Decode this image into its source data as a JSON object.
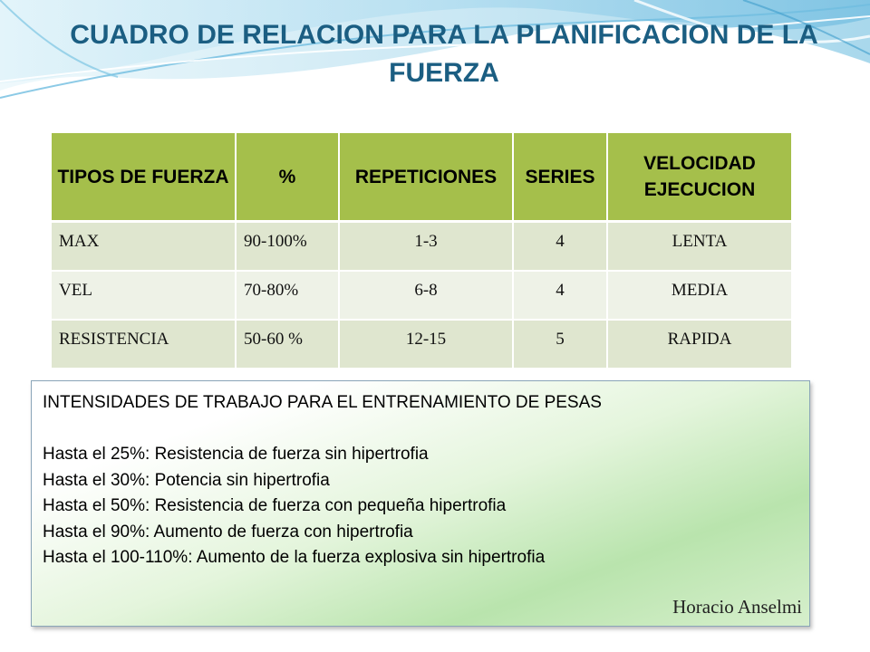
{
  "slide": {
    "title": "CUADRO DE RELACION PARA LA PLANIFICACION DE LA FUERZA"
  },
  "table": {
    "headers": [
      "TIPOS DE FUERZA",
      "%",
      "REPETICIONES",
      "SERIES",
      "VELOCIDAD EJECUCION"
    ],
    "rows": [
      [
        "MAX",
        "90-100%",
        "1-3",
        "4",
        "LENTA"
      ],
      [
        "VEL",
        "70-80%",
        "6-8",
        "4",
        "MEDIA"
      ],
      [
        "RESISTENCIA",
        "50-60 %",
        "12-15",
        "5",
        "RAPIDA"
      ]
    ]
  },
  "info": {
    "heading": "INTENSIDADES DE TRABAJO PARA EL ENTRENAMIENTO DE PESAS",
    "lines": [
      "Hasta el 25%: Resistencia de fuerza sin hipertrofia",
      "Hasta el 30%: Potencia sin hipertrofia",
      "Hasta el 50%: Resistencia de fuerza con pequeña hipertrofia",
      "Hasta el 90%: Aumento de fuerza con hipertrofia",
      "Hasta el 100-110%: Aumento de la fuerza explosiva sin hipertrofia"
    ],
    "author": "Horacio Anselmi"
  },
  "colors": {
    "title": "#1b5e82",
    "header_bg": "#a5bf4b",
    "row_odd": "#dfe6cf",
    "row_even": "#eef2e7",
    "wave_light": "#bfe3f2",
    "wave_dark": "#4fa8d4"
  }
}
